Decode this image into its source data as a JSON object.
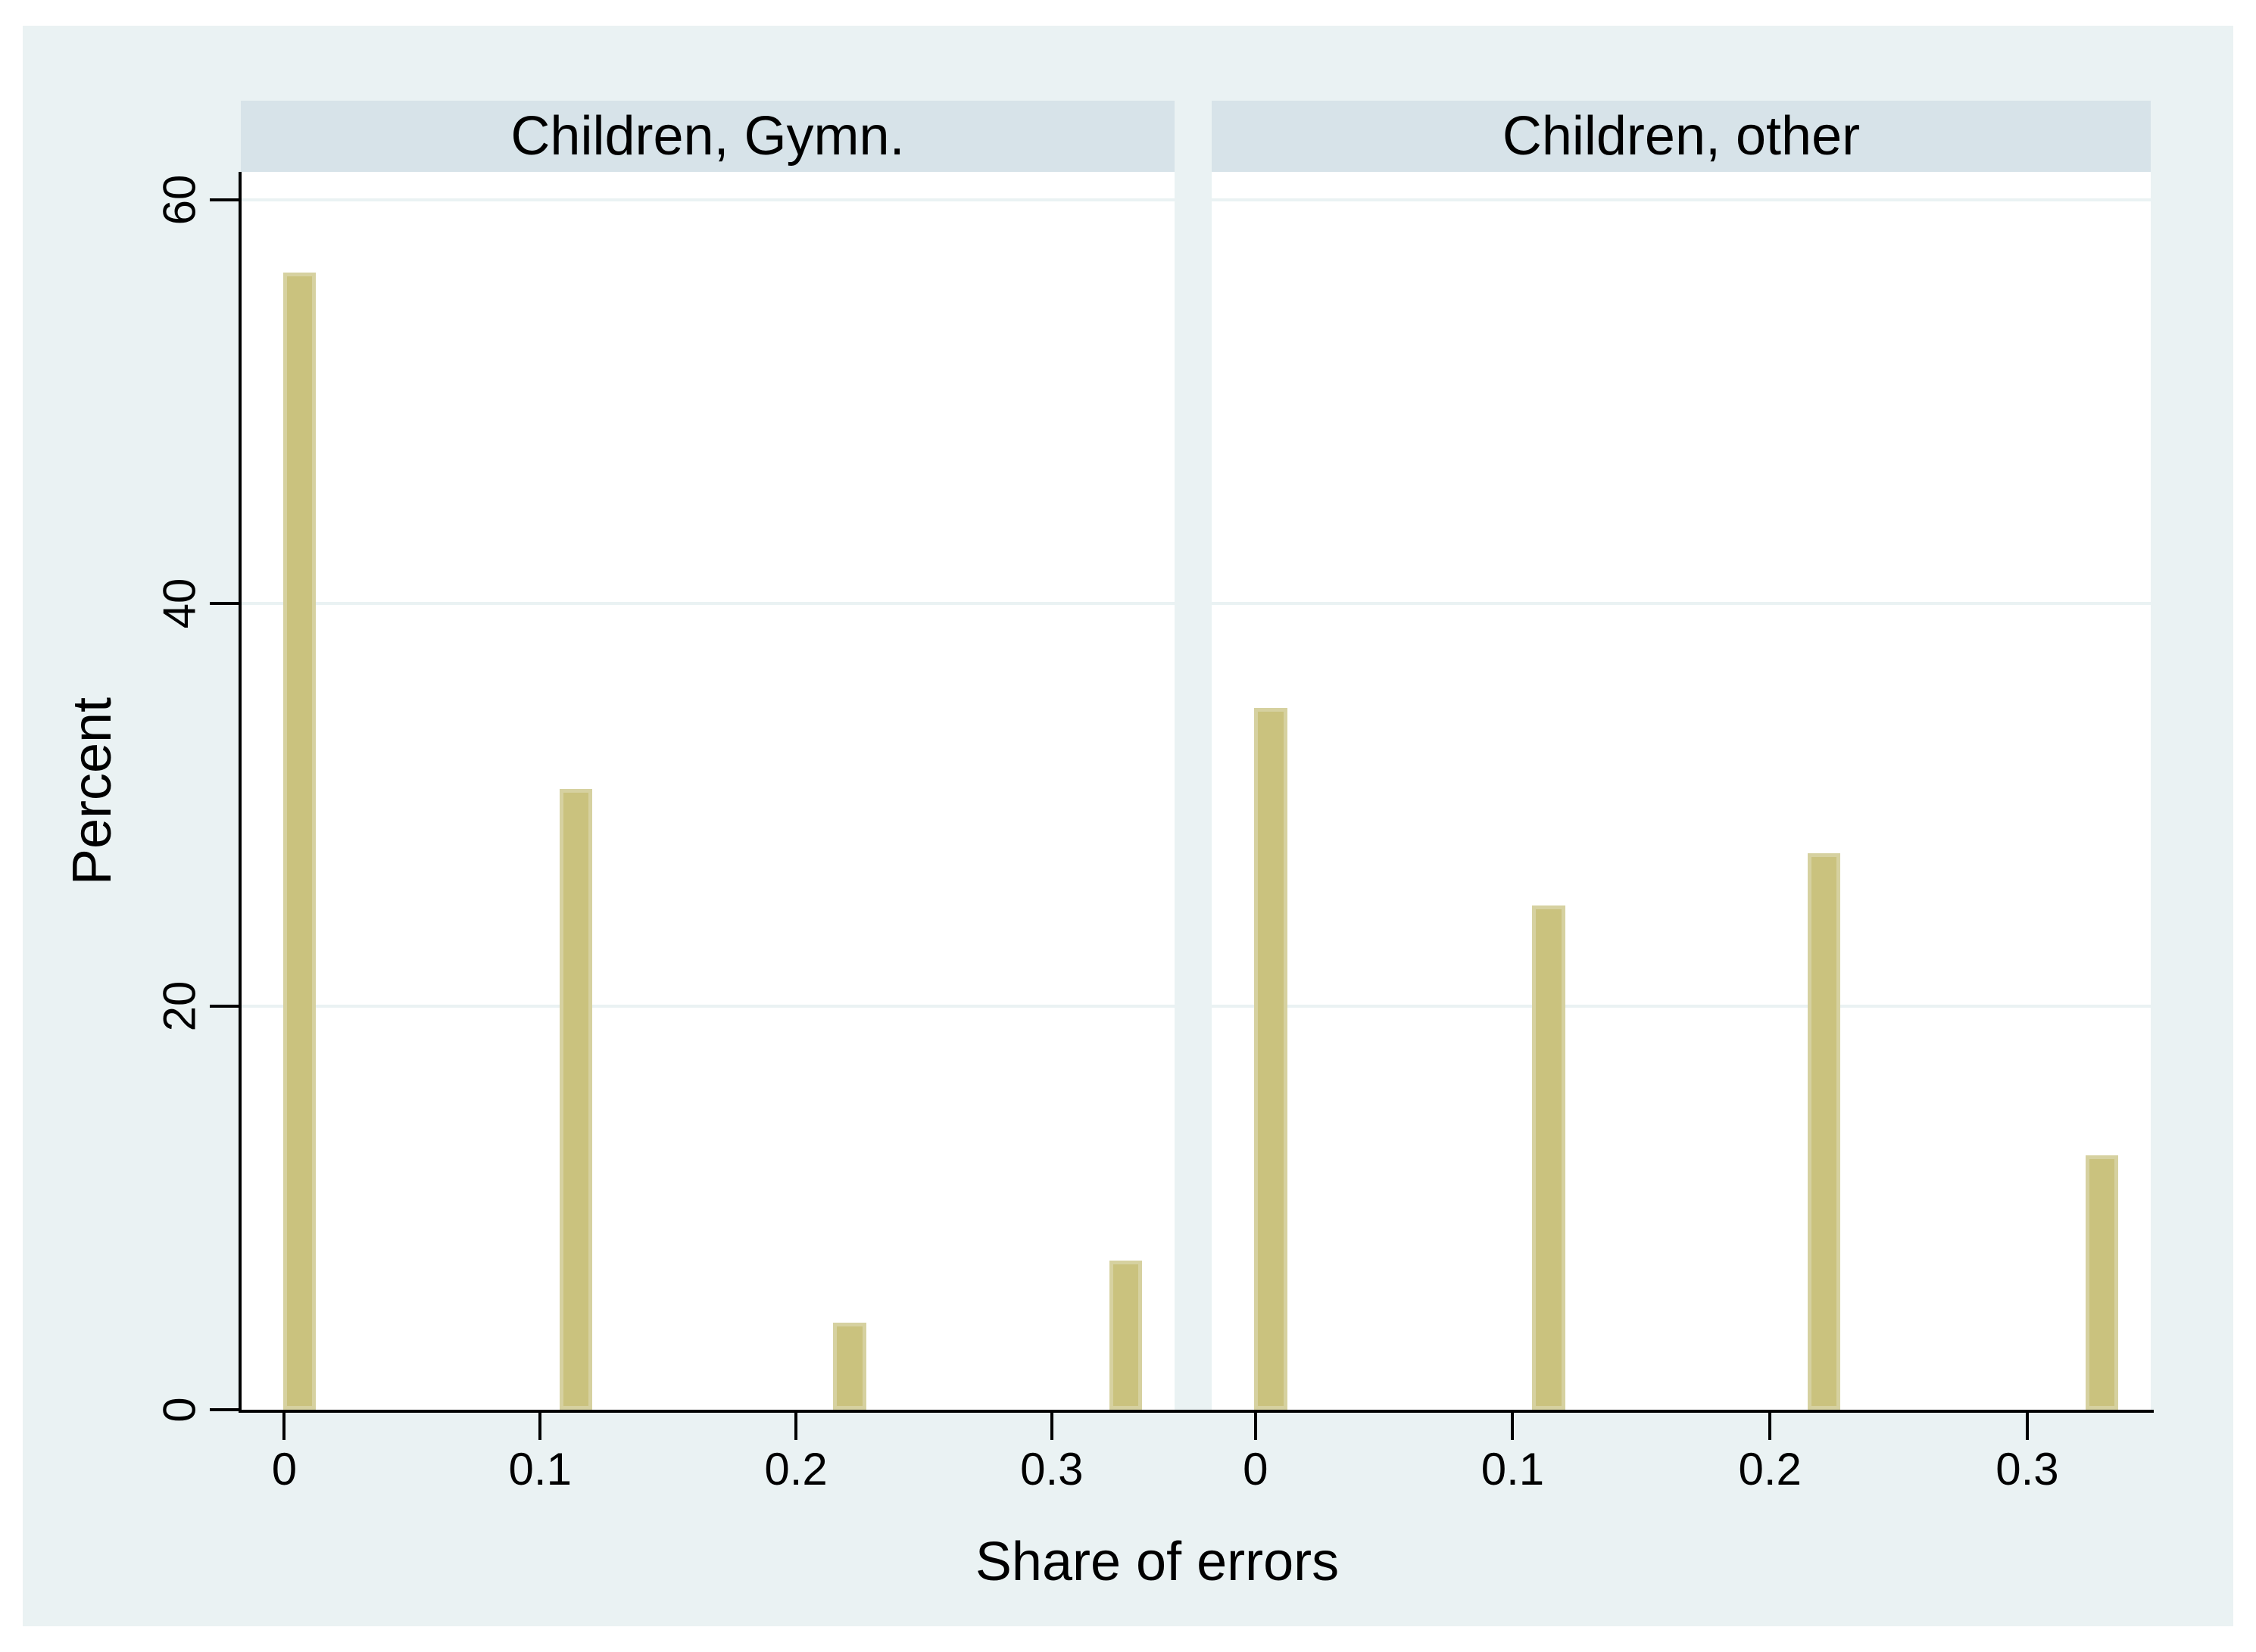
{
  "figure": {
    "page_background": "#FFFFFF",
    "background": "#EAF2F3",
    "panel_header_background": "#D7E3E9",
    "plot_background": "#FFFFFF",
    "gridline_color": "#EAF2F3",
    "axis_color": "#000000",
    "bar_fill": "#CAC27E",
    "bar_border": "#D6D1A0",
    "text_color": "#000000"
  },
  "chart_data": {
    "type": "bar",
    "chart_style": "histogram, two by-panels",
    "xlabel": "Share of errors",
    "ylabel": "Percent",
    "x_ticks": [
      0,
      0.1,
      0.2,
      0.3
    ],
    "x_tick_labels": [
      "0",
      "0.1",
      "0.2",
      "0.3"
    ],
    "y_ticks": [
      0,
      20,
      40,
      60
    ],
    "y_tick_labels": [
      "0",
      "20",
      "40",
      "60"
    ],
    "xlim": [
      -0.017,
      0.348
    ],
    "ylim": [
      0,
      61.4
    ],
    "grid": "horizontal gridlines at 20, 40, 60",
    "legend_position": "none",
    "bar_centers": [
      0.006,
      0.114,
      0.221,
      0.329
    ],
    "bar_width_units": 0.0128,
    "panels": [
      {
        "title": "Children, Gymn.",
        "bars": [
          {
            "share": 0,
            "percent": 56.4
          },
          {
            "share": 0.11,
            "percent": 30.8
          },
          {
            "share": 0.22,
            "percent": 4.3
          },
          {
            "share": 0.33,
            "percent": 7.4
          }
        ]
      },
      {
        "title": "Children, other",
        "bars": [
          {
            "share": 0,
            "percent": 34.8
          },
          {
            "share": 0.11,
            "percent": 25.0
          },
          {
            "share": 0.22,
            "percent": 27.6
          },
          {
            "share": 0.33,
            "percent": 12.6
          }
        ]
      }
    ]
  }
}
